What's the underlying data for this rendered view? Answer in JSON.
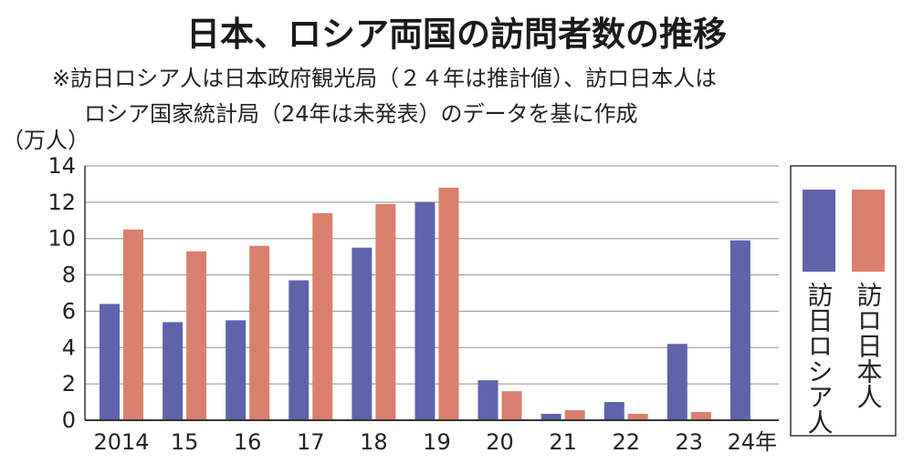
{
  "chart_data": {
    "type": "bar",
    "title": "日本、ロシア両国の訪問者数の推移",
    "notes": [
      "※訪日ロシア人は日本政府観光局（２４年は推計値）、訪ロ日本人は",
      "ロシア国家統計局（24年は未発表）のデータを基に作成"
    ],
    "ylabel": "（万人）",
    "ylim": [
      0,
      14
    ],
    "yticks": [
      0,
      2,
      4,
      6,
      8,
      10,
      12,
      14
    ],
    "grid": true,
    "legend_position": "right",
    "categories": [
      "2014",
      "15",
      "16",
      "17",
      "18",
      "19",
      "20",
      "21",
      "22",
      "23",
      "24年"
    ],
    "series": [
      {
        "name": "訪日ロシア人",
        "color": "#5f63a9",
        "values": [
          6.4,
          5.4,
          5.5,
          7.7,
          9.5,
          12.0,
          2.2,
          0.35,
          1.0,
          4.2,
          9.9
        ]
      },
      {
        "name": "訪ロ日本人",
        "color": "#d9806d",
        "values": [
          10.5,
          9.3,
          9.6,
          11.4,
          11.9,
          12.8,
          1.6,
          0.55,
          0.35,
          0.45,
          null
        ]
      }
    ]
  }
}
